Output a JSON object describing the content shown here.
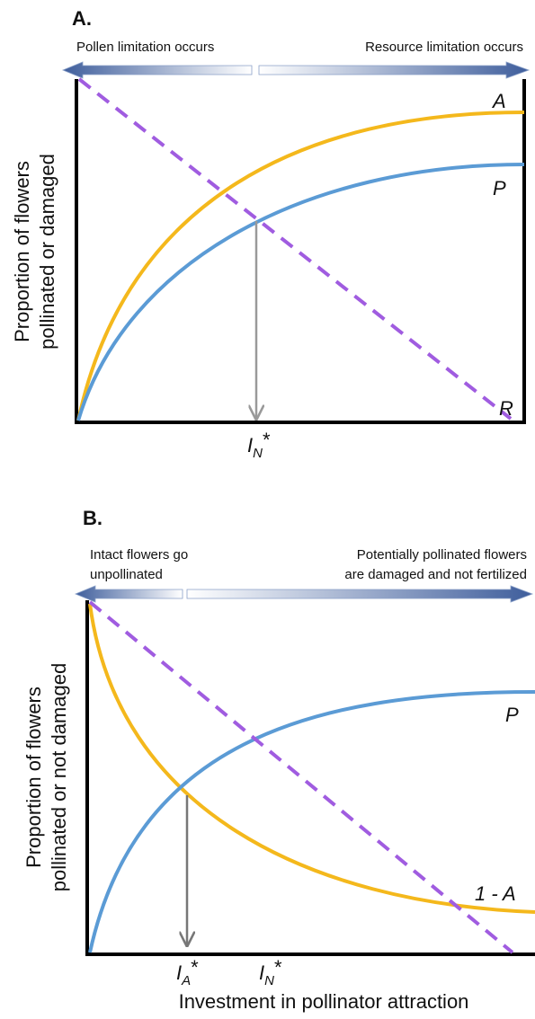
{
  "panel_a": {
    "label": "A.",
    "left_note": "Pollen limitation occurs",
    "right_note": "Resource limitation occurs",
    "y_axis_label": [
      "Proportion of flowers",
      "pollinated or damaged"
    ],
    "curve_labels": {
      "a": "A",
      "p": "P",
      "r": "R"
    },
    "marker": {
      "base": "I",
      "sub": "N",
      "suffix": "*"
    }
  },
  "panel_b": {
    "label": "B.",
    "left_note": [
      "Intact flowers go",
      "unpollinated"
    ],
    "right_note": [
      "Potentially pollinated flowers",
      "are damaged and not fertilized"
    ],
    "y_axis_label": [
      "Proportion of flowers",
      "pollinated or not damaged"
    ],
    "curve_labels": {
      "p": "P",
      "one_minus_a": "1 - A"
    },
    "markers": [
      {
        "base": "I",
        "sub": "A",
        "suffix": "*"
      },
      {
        "base": "I",
        "sub": "N",
        "suffix": "*"
      }
    ],
    "x_axis_label": "Investment in pollinator attraction"
  }
}
